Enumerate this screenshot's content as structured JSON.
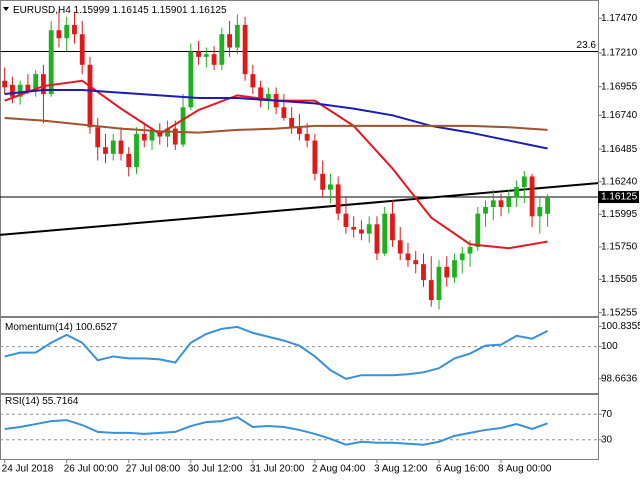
{
  "chart_data": [
    {
      "type": "candlestick",
      "title": "EURUSD,H4",
      "categories": [
        "24 Jul 2018",
        null,
        null,
        null,
        null,
        null,
        null,
        null,
        "26 Jul 00:00",
        null,
        null,
        null,
        null,
        null,
        null,
        null,
        "27 Jul 08:00",
        null,
        null,
        null,
        null,
        null,
        null,
        null,
        "30 Jul 12:00",
        null,
        null,
        null,
        null,
        null,
        null,
        null,
        "31 Jul 20:00",
        null,
        null,
        null,
        null,
        null,
        null,
        null,
        "2 Aug 04:00",
        null,
        null,
        null,
        null,
        null,
        null,
        null,
        "3 Aug 12:00",
        null,
        null,
        null,
        null,
        null,
        null,
        null,
        "6 Aug 16:00",
        null,
        null,
        null,
        null,
        null,
        null,
        null,
        "8 Aug 00:00",
        null,
        null,
        null,
        null,
        null,
        null
      ],
      "open": [
        1.17,
        1.1697,
        1.1688,
        1.1697,
        1.1692,
        1.1705,
        1.169,
        1.1738,
        1.1732,
        1.1742,
        1.1735,
        1.1712,
        1.1665,
        1.165,
        1.1645,
        1.1655,
        1.1645,
        1.1635,
        1.166,
        1.1655,
        1.1662,
        1.1658,
        1.1664,
        1.1652,
        1.168,
        1.1722,
        1.1718,
        1.172,
        1.1712,
        1.1735,
        1.1725,
        1.1742,
        1.1705,
        1.1695,
        1.1685,
        1.169,
        1.168,
        1.1672,
        1.1665,
        1.166,
        1.1655,
        1.163,
        1.1618,
        1.1622,
        1.16,
        1.159,
        1.1588,
        1.1585,
        1.1592,
        1.157,
        1.16,
        1.158,
        1.157,
        1.1565,
        1.1562,
        1.155,
        1.1535,
        1.156,
        1.1552,
        1.1565,
        1.157,
        1.1575,
        1.16,
        1.1605,
        1.161,
        1.1605,
        1.1612,
        1.162,
        1.1628,
        1.1598,
        1.15999
      ],
      "high": [
        1.171,
        1.1703,
        1.17,
        1.1705,
        1.1708,
        1.1712,
        1.1745,
        1.1752,
        1.1748,
        1.1752,
        1.1745,
        1.1718,
        1.1672,
        1.166,
        1.166,
        1.1665,
        1.165,
        1.1665,
        1.1668,
        1.1665,
        1.1668,
        1.167,
        1.167,
        1.169,
        1.1728,
        1.173,
        1.1725,
        1.1726,
        1.174,
        1.1745,
        1.175,
        1.1748,
        1.1712,
        1.17,
        1.1695,
        1.1695,
        1.169,
        1.168,
        1.1675,
        1.1668,
        1.166,
        1.164,
        1.163,
        1.1628,
        1.1612,
        1.1598,
        1.1595,
        1.1598,
        1.1598,
        1.1605,
        1.161,
        1.159,
        1.1578,
        1.1572,
        1.157,
        1.1568,
        1.1565,
        1.1568,
        1.157,
        1.1575,
        1.158,
        1.1605,
        1.161,
        1.1618,
        1.1615,
        1.1618,
        1.1625,
        1.1632,
        1.163,
        1.1612,
        1.16145
      ],
      "low": [
        1.169,
        1.1683,
        1.1682,
        1.169,
        1.1688,
        1.1668,
        1.1688,
        1.1725,
        1.1722,
        1.1728,
        1.1705,
        1.166,
        1.164,
        1.1638,
        1.164,
        1.164,
        1.1628,
        1.163,
        1.165,
        1.1648,
        1.1652,
        1.165,
        1.1648,
        1.165,
        1.1678,
        1.1712,
        1.171,
        1.1708,
        1.1708,
        1.1718,
        1.172,
        1.17,
        1.169,
        1.168,
        1.1678,
        1.1675,
        1.167,
        1.166,
        1.1655,
        1.165,
        1.1625,
        1.1612,
        1.1608,
        1.1595,
        1.1585,
        1.1582,
        1.158,
        1.1578,
        1.1565,
        1.1568,
        1.1575,
        1.1565,
        1.156,
        1.1555,
        1.1545,
        1.153,
        1.1528,
        1.1545,
        1.1548,
        1.1555,
        1.156,
        1.1572,
        1.159,
        1.1595,
        1.1598,
        1.16,
        1.1605,
        1.1608,
        1.159,
        1.1585,
        1.15901
      ],
      "close": [
        1.1695,
        1.1688,
        1.1697,
        1.1692,
        1.1705,
        1.169,
        1.1738,
        1.1732,
        1.1742,
        1.1735,
        1.1712,
        1.1665,
        1.165,
        1.1645,
        1.1655,
        1.1645,
        1.1635,
        1.166,
        1.1655,
        1.1662,
        1.1658,
        1.1664,
        1.1652,
        1.168,
        1.1722,
        1.1718,
        1.172,
        1.1712,
        1.1735,
        1.1725,
        1.1742,
        1.1705,
        1.1695,
        1.1685,
        1.169,
        1.168,
        1.1672,
        1.1665,
        1.166,
        1.1655,
        1.163,
        1.1618,
        1.1622,
        1.16,
        1.159,
        1.1588,
        1.1585,
        1.1592,
        1.157,
        1.16,
        1.158,
        1.157,
        1.1565,
        1.1562,
        1.155,
        1.1535,
        1.156,
        1.1552,
        1.1565,
        1.157,
        1.1575,
        1.16,
        1.1605,
        1.161,
        1.1605,
        1.1612,
        1.162,
        1.1628,
        1.1598,
        1.1605,
        1.16125
      ],
      "up_color": "#1fb01f",
      "down_color": "#e01818",
      "overlays": [
        {
          "color": "#e8141e",
          "x": [
            0,
            5,
            10,
            15,
            20,
            25,
            30,
            35,
            40,
            45,
            50,
            55,
            60,
            65,
            70
          ],
          "values": [
            1.1685,
            1.1696,
            1.17,
            1.1679,
            1.166,
            1.1678,
            1.1689,
            1.1685,
            1.1685,
            1.1666,
            1.1634,
            1.1597,
            1.1577,
            1.1574,
            1.1579
          ]
        },
        {
          "color": "#1c1cb4",
          "x": [
            0,
            5,
            10,
            15,
            20,
            25,
            30,
            35,
            40,
            45,
            50,
            55,
            60,
            65,
            70
          ],
          "values": [
            1.169,
            1.1693,
            1.1693,
            1.1691,
            1.1689,
            1.1687,
            1.1687,
            1.1685,
            1.1683,
            1.1679,
            1.1674,
            1.1666,
            1.1661,
            1.1655,
            1.1649
          ]
        },
        {
          "color": "#a0522d",
          "x": [
            0,
            5,
            10,
            15,
            20,
            25,
            30,
            35,
            40,
            45,
            50,
            55,
            60,
            65,
            70
          ],
          "values": [
            1.1672,
            1.167,
            1.1667,
            1.1664,
            1.1662,
            1.1661,
            1.1663,
            1.1664,
            1.1666,
            1.1666,
            1.1666,
            1.1666,
            1.1666,
            1.1665,
            1.1663
          ]
        }
      ],
      "trendline": {
        "color": "#000000",
        "x": [
          -0.6,
          76.5
        ],
        "values": [
          1.1584,
          1.1623
        ]
      },
      "levels": [
        {
          "value": 1.1722,
          "label": "23.6"
        }
      ],
      "xlim": [
        -0.6,
        76.5
      ],
      "ylim": [
        1.1523,
        1.176
      ],
      "yticks": [
        {
          "value": 1.1747,
          "label": "1.17470"
        },
        {
          "value": 1.1721,
          "label": "1.17210"
        },
        {
          "value": 1.16955,
          "label": "1.16955"
        },
        {
          "value": 1.1674,
          "label": "1.16740"
        },
        {
          "value": 1.16485,
          "label": "1.16485"
        },
        {
          "value": 1.1624,
          "label": "1.16240"
        },
        {
          "value": 1.15995,
          "label": "1.15995"
        },
        {
          "value": 1.1575,
          "label": "1.15750"
        },
        {
          "value": 1.15505,
          "label": "1.15505"
        },
        {
          "value": 1.15255,
          "label": "1.15255"
        }
      ],
      "grid": false
    },
    {
      "type": "line",
      "title": "Momentum(14)",
      "color": "#3a8fd9",
      "x": [
        0,
        2,
        4,
        6,
        8,
        10,
        12,
        14,
        16,
        18,
        20,
        22,
        24,
        26,
        28,
        30,
        32,
        34,
        36,
        38,
        40,
        42,
        44,
        46,
        48,
        50,
        52,
        54,
        56,
        58,
        60,
        62,
        64,
        66,
        68,
        70
      ],
      "values": [
        99.59,
        99.75,
        99.75,
        100.16,
        100.49,
        100.16,
        99.43,
        99.59,
        99.51,
        99.51,
        99.47,
        99.34,
        100.16,
        100.53,
        100.74,
        100.82,
        100.57,
        100.41,
        100.25,
        100.04,
        99.59,
        99.02,
        98.66,
        98.81,
        98.81,
        98.81,
        98.85,
        98.93,
        99.1,
        99.51,
        99.71,
        100.04,
        100.08,
        100.45,
        100.33,
        100.6527
      ],
      "levels": [
        100
      ],
      "xlim": [
        -0.6,
        76.5
      ],
      "ylim": [
        98.07,
        101.19
      ],
      "yticks": [
        100.8355,
        100,
        98.6636
      ],
      "grid": false
    },
    {
      "type": "line",
      "title": "RSI(14)",
      "color": "#3a8fd9",
      "x": [
        0,
        2,
        4,
        6,
        8,
        10,
        12,
        14,
        16,
        18,
        20,
        22,
        24,
        26,
        28,
        30,
        32,
        34,
        36,
        38,
        40,
        42,
        44,
        46,
        48,
        50,
        52,
        54,
        56,
        58,
        60,
        62,
        64,
        66,
        68,
        70
      ],
      "values": [
        46.9,
        50.0,
        54.6,
        59.2,
        60.8,
        53.1,
        42.3,
        40.8,
        40.8,
        39.2,
        40.8,
        42.3,
        51.5,
        57.7,
        59.2,
        65.4,
        50.0,
        51.5,
        50.0,
        45.4,
        39.2,
        31.5,
        22.3,
        26.9,
        25.4,
        25.4,
        23.8,
        22.3,
        26.9,
        36.2,
        40.8,
        45.4,
        48.5,
        54.6,
        46.9,
        55.7164
      ],
      "levels": [
        70,
        30
      ],
      "xlim": [
        -0.6,
        76.5
      ],
      "ylim": [
        0,
        100
      ],
      "yticks": [
        70,
        30
      ],
      "grid": false
    }
  ]
}
